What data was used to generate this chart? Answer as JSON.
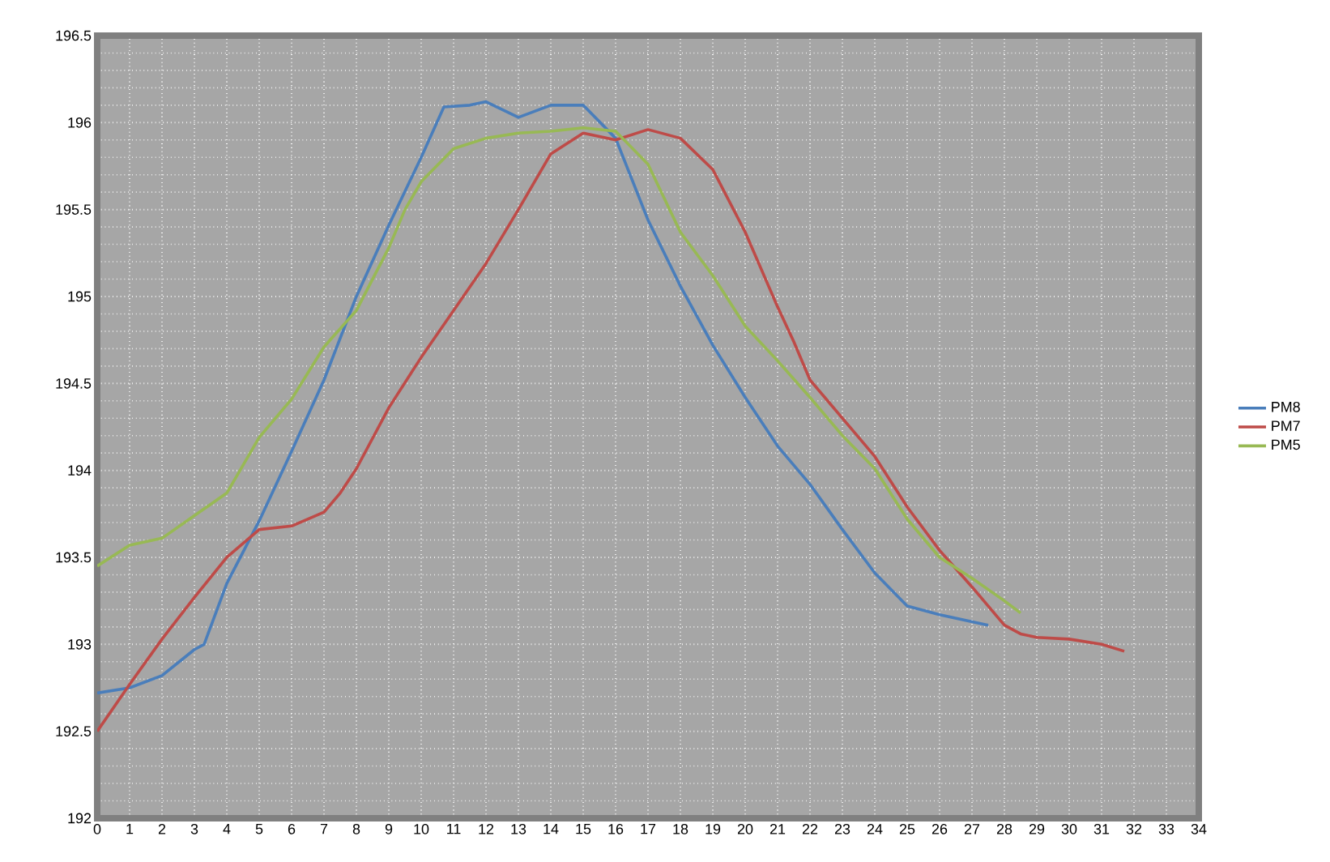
{
  "chart_data": {
    "type": "line",
    "xlim": [
      0,
      34
    ],
    "ylim": [
      192,
      196.5
    ],
    "xticks": [
      0,
      1,
      2,
      3,
      4,
      5,
      6,
      7,
      8,
      9,
      10,
      11,
      12,
      13,
      14,
      15,
      16,
      17,
      18,
      19,
      20,
      21,
      22,
      23,
      24,
      25,
      26,
      27,
      28,
      29,
      30,
      31,
      32,
      33,
      34
    ],
    "yticks": [
      192,
      192.5,
      193,
      193.5,
      194,
      194.5,
      195,
      195.5,
      196,
      196.5
    ],
    "grid": true,
    "legend": "right",
    "marker": "none",
    "line_style": "solid",
    "series": [
      {
        "name": "PM8",
        "color": "#4a7ebb",
        "x": [
          0,
          1,
          2,
          3,
          3.3,
          4,
          5,
          6,
          7,
          8,
          9,
          10,
          10.7,
          11.5,
          12,
          13,
          14,
          15,
          16,
          17,
          18,
          19,
          20,
          21,
          22,
          23,
          24,
          25,
          26,
          27.5
        ],
        "values": [
          192.72,
          192.75,
          192.82,
          192.97,
          193.0,
          193.35,
          193.71,
          194.11,
          194.52,
          195.0,
          195.41,
          195.8,
          196.09,
          196.1,
          196.12,
          196.03,
          196.1,
          196.1,
          195.91,
          195.44,
          195.06,
          194.72,
          194.42,
          194.14,
          193.92,
          193.66,
          193.41,
          193.22,
          193.17,
          193.11
        ]
      },
      {
        "name": "PM7",
        "color": "#be4b48",
        "x": [
          0,
          1,
          2,
          3,
          4,
          4.5,
          5,
          6,
          7,
          7.5,
          8,
          9,
          10,
          11,
          12,
          13,
          14,
          15,
          16,
          17,
          18,
          19,
          20,
          21,
          21.5,
          22,
          23,
          24,
          25,
          26,
          27,
          28,
          28.5,
          29,
          30,
          31,
          31.7
        ],
        "values": [
          192.5,
          192.77,
          193.03,
          193.27,
          193.5,
          193.58,
          193.66,
          193.68,
          193.76,
          193.87,
          194.01,
          194.36,
          194.65,
          194.92,
          195.19,
          195.5,
          195.82,
          195.94,
          195.9,
          195.96,
          195.91,
          195.73,
          195.37,
          194.94,
          194.74,
          194.52,
          194.3,
          194.08,
          193.79,
          193.54,
          193.33,
          193.11,
          193.06,
          193.04,
          193.03,
          193.0,
          192.96
        ]
      },
      {
        "name": "PM5",
        "color": "#98b954",
        "x": [
          0,
          1,
          2,
          3,
          4,
          5,
          6,
          7,
          8,
          9,
          9.5,
          10,
          11,
          12,
          13,
          14,
          15,
          16,
          17,
          18,
          19,
          20,
          21,
          22,
          23,
          24,
          25,
          26,
          27,
          28,
          28.5
        ],
        "values": [
          193.45,
          193.57,
          193.61,
          193.74,
          193.87,
          194.19,
          194.41,
          194.71,
          194.92,
          195.28,
          195.5,
          195.66,
          195.85,
          195.91,
          195.94,
          195.95,
          195.97,
          195.95,
          195.76,
          195.37,
          195.12,
          194.83,
          194.63,
          194.42,
          194.2,
          194.01,
          193.72,
          193.5,
          193.38,
          193.25,
          193.18
        ]
      }
    ]
  }
}
